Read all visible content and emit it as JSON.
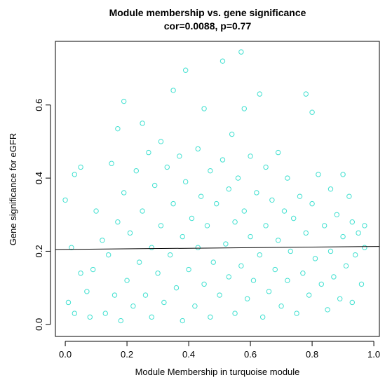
{
  "chart_data": {
    "type": "scatter",
    "title": "Module membership vs. gene significance",
    "subtitle": "cor=0.0088, p=0.77",
    "x_label": "Module Membership in turquoise module",
    "y_label": "Gene significance for  eGFR",
    "xlim": [
      -0.032,
      1.018
    ],
    "ylim": [
      -0.033,
      0.774
    ],
    "xticks": [
      {
        "value": 0,
        "label": "0.0"
      },
      0.2,
      0.4,
      0.6,
      0.8,
      {
        "value": 1,
        "label": "1.0"
      }
    ],
    "yticks": [
      {
        "value": 0,
        "label": "0.0"
      },
      0.2,
      0.4,
      0.6
    ],
    "abline": {
      "intercept": 0.205,
      "slope": 0.008,
      "color": "#000000"
    },
    "series": [
      {
        "color": "#40e0d0",
        "x": [
          0.0,
          0.01,
          0.02,
          0.03,
          0.03,
          0.05,
          0.05,
          0.07,
          0.08,
          0.09,
          0.1,
          0.12,
          0.13,
          0.14,
          0.15,
          0.16,
          0.17,
          0.17,
          0.18,
          0.19,
          0.19,
          0.2,
          0.21,
          0.22,
          0.23,
          0.24,
          0.25,
          0.25,
          0.26,
          0.27,
          0.28,
          0.28,
          0.29,
          0.3,
          0.31,
          0.31,
          0.32,
          0.33,
          0.34,
          0.35,
          0.35,
          0.36,
          0.37,
          0.38,
          0.38,
          0.39,
          0.39,
          0.4,
          0.41,
          0.42,
          0.43,
          0.43,
          0.44,
          0.45,
          0.45,
          0.46,
          0.47,
          0.47,
          0.48,
          0.49,
          0.5,
          0.51,
          0.51,
          0.52,
          0.53,
          0.53,
          0.54,
          0.55,
          0.55,
          0.56,
          0.57,
          0.57,
          0.58,
          0.58,
          0.59,
          0.6,
          0.6,
          0.61,
          0.62,
          0.63,
          0.63,
          0.64,
          0.65,
          0.65,
          0.66,
          0.67,
          0.68,
          0.69,
          0.69,
          0.7,
          0.71,
          0.72,
          0.72,
          0.73,
          0.74,
          0.75,
          0.76,
          0.77,
          0.78,
          0.78,
          0.79,
          0.8,
          0.8,
          0.81,
          0.82,
          0.83,
          0.84,
          0.85,
          0.86,
          0.86,
          0.87,
          0.88,
          0.89,
          0.9,
          0.9,
          0.91,
          0.92,
          0.93,
          0.93,
          0.94,
          0.95,
          0.96,
          0.97,
          0.97
        ],
        "y": [
          0.34,
          0.06,
          0.21,
          0.41,
          0.03,
          0.43,
          0.14,
          0.09,
          0.02,
          0.15,
          0.31,
          0.23,
          0.03,
          0.19,
          0.44,
          0.08,
          0.535,
          0.28,
          0.01,
          0.61,
          0.36,
          0.12,
          0.25,
          0.05,
          0.42,
          0.17,
          0.55,
          0.31,
          0.08,
          0.47,
          0.21,
          0.02,
          0.38,
          0.14,
          0.5,
          0.27,
          0.06,
          0.43,
          0.19,
          0.64,
          0.33,
          0.1,
          0.46,
          0.24,
          0.01,
          0.695,
          0.39,
          0.15,
          0.29,
          0.05,
          0.48,
          0.21,
          0.35,
          0.11,
          0.59,
          0.27,
          0.02,
          0.42,
          0.17,
          0.33,
          0.08,
          0.72,
          0.45,
          0.22,
          0.37,
          0.13,
          0.52,
          0.03,
          0.28,
          0.4,
          0.745,
          0.16,
          0.59,
          0.31,
          0.07,
          0.46,
          0.24,
          0.12,
          0.36,
          0.63,
          0.19,
          0.02,
          0.43,
          0.27,
          0.09,
          0.34,
          0.15,
          0.47,
          0.23,
          0.05,
          0.31,
          0.4,
          0.12,
          0.2,
          0.29,
          0.03,
          0.35,
          0.14,
          0.63,
          0.25,
          0.08,
          0.58,
          0.33,
          0.18,
          0.41,
          0.11,
          0.27,
          0.04,
          0.37,
          0.2,
          0.13,
          0.3,
          0.07,
          0.41,
          0.24,
          0.16,
          0.35,
          0.06,
          0.28,
          0.19,
          0.25,
          0.11,
          0.27,
          0.21
        ]
      }
    ]
  }
}
